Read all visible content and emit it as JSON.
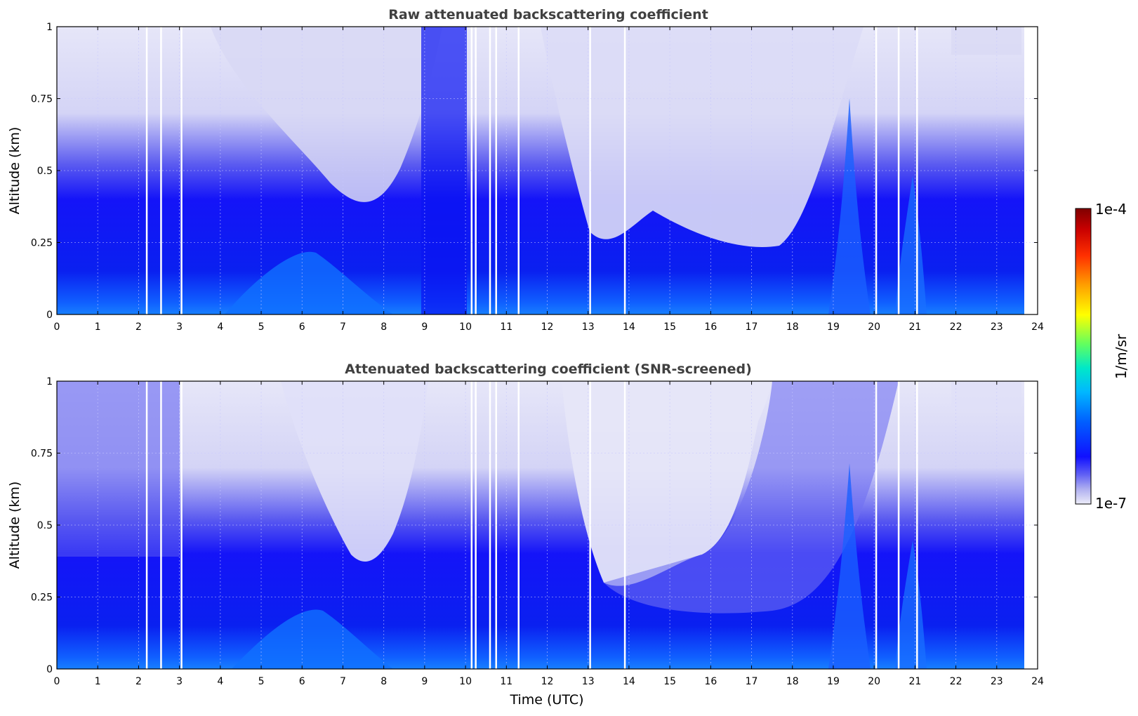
{
  "chart_data": [
    {
      "type": "heatmap",
      "title": "Raw attenuated backscattering coefficient",
      "xlabel": "",
      "ylabel": "Altitude (km)",
      "xlim": [
        0,
        24
      ],
      "ylim": [
        0,
        1
      ],
      "x_ticks": [
        "0",
        "1",
        "2",
        "3",
        "4",
        "5",
        "6",
        "7",
        "8",
        "9",
        "10",
        "11",
        "12",
        "13",
        "14",
        "15",
        "16",
        "17",
        "18",
        "19",
        "20",
        "21",
        "22",
        "23",
        "24"
      ],
      "y_ticks": [
        "0",
        "0.25",
        "0.5",
        "0.75",
        "1"
      ],
      "grid": true,
      "data_gaps_utc": [
        2.2,
        2.55,
        3.05,
        10.15,
        10.25,
        10.6,
        10.75,
        11.3,
        13.05,
        13.9,
        20.05,
        20.6,
        21.05
      ]
    },
    {
      "type": "heatmap",
      "title": "Attenuated backscattering coefficient (SNR-screened)",
      "xlabel": "Time (UTC)",
      "ylabel": "Altitude (km)",
      "xlim": [
        0,
        24
      ],
      "ylim": [
        0,
        1
      ],
      "x_ticks": [
        "0",
        "1",
        "2",
        "3",
        "4",
        "5",
        "6",
        "7",
        "8",
        "9",
        "10",
        "11",
        "12",
        "13",
        "14",
        "15",
        "16",
        "17",
        "18",
        "19",
        "20",
        "21",
        "22",
        "23",
        "24"
      ],
      "y_ticks": [
        "0",
        "0.25",
        "0.5",
        "0.75",
        "1"
      ],
      "grid": true,
      "data_gaps_utc": [
        2.2,
        2.55,
        3.05,
        10.15,
        10.25,
        10.6,
        10.75,
        11.3,
        13.05,
        13.9,
        20.05,
        20.6,
        21.05
      ]
    }
  ],
  "colorbar": {
    "max_label": "1e-4",
    "min_label": "1e-7",
    "unit_label": "1/m/sr",
    "scale": "log",
    "range": [
      1e-07,
      0.0001
    ],
    "colormap": [
      "#e8e8f8",
      "#b8b8f0",
      "#7a7af0",
      "#2020ff",
      "#0000e0",
      "#0050ff",
      "#00b0ff",
      "#00e0c0",
      "#60ff60",
      "#ffff00",
      "#ffa000",
      "#ff3000",
      "#c00000",
      "#800000"
    ]
  }
}
